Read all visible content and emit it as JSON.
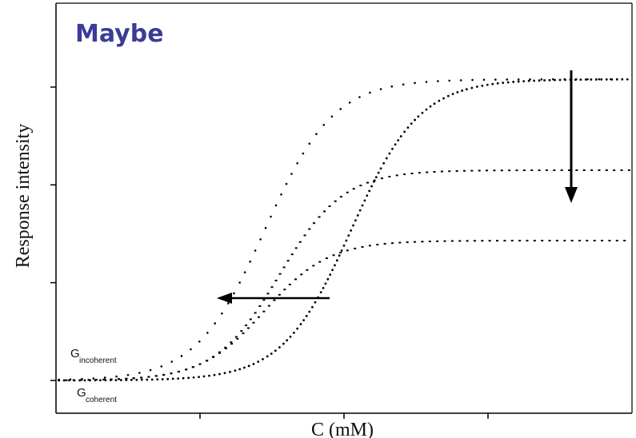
{
  "chart_data": {
    "type": "scatter",
    "title": "Maybe",
    "xlabel": "C (mM)",
    "ylabel": "Response intensity",
    "grid": false,
    "xlim": [
      0,
      4
    ],
    "ylim": [
      0,
      3.4
    ],
    "annotations": [
      {
        "main": "G",
        "sub": "incoherent"
      },
      {
        "main": "G",
        "sub": "coherent"
      }
    ],
    "arrows": [
      {
        "direction": "down",
        "meaning": "decreasing maximum response"
      },
      {
        "direction": "left",
        "meaning": "shift to lower concentration"
      }
    ],
    "series": [
      {
        "color": "#000000",
        "marker": "dense-dots",
        "x0": 2.05,
        "k": 4.2,
        "min": 0,
        "max": 3.08
      },
      {
        "color": "#000000",
        "marker": "sparse-dots",
        "x0": 1.45,
        "k": 4.2,
        "min": 0,
        "max": 3.08
      },
      {
        "color": "#000000",
        "marker": "dashes",
        "x0": 1.55,
        "k": 4.5,
        "min": 0,
        "max": 2.15
      },
      {
        "color": "#000000",
        "marker": "dashes",
        "x0": 1.45,
        "k": 4.5,
        "min": 0,
        "max": 1.43
      }
    ]
  }
}
